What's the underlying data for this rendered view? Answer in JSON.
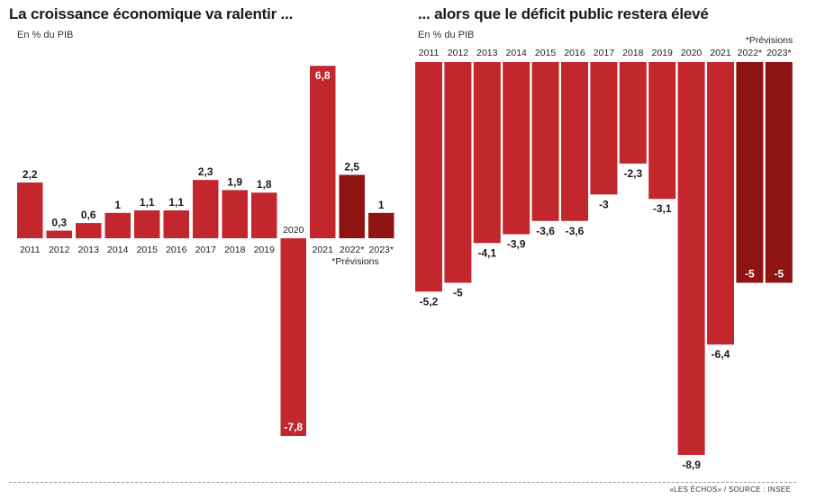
{
  "source": "«LES ÉCHOS» / SOURCE : INSEE",
  "charts": [
    {
      "title": "La croissance économique va ralentir ...",
      "subtitle": "En % du PIB",
      "note": "*Prévisions"
    },
    {
      "title": "... alors que le déficit public restera élevé",
      "subtitle": "En % du PIB",
      "note": "*Prévisions"
    }
  ],
  "colors": {
    "actual": "#c1272d",
    "forecast": "#8e1414",
    "text": "#1a1a1a",
    "label_on_bar": "#ffffff"
  },
  "chart_data": [
    {
      "type": "bar",
      "title": "La croissance économique va ralentir ...",
      "ylabel": "En % du PIB",
      "categories": [
        "2011",
        "2012",
        "2013",
        "2014",
        "2015",
        "2016",
        "2017",
        "2018",
        "2019",
        "2020",
        "2021",
        "2022*",
        "2023*"
      ],
      "values": [
        2.2,
        0.3,
        0.6,
        1,
        1.1,
        1.1,
        2.3,
        1.9,
        1.8,
        -7.8,
        6.8,
        2.5,
        1
      ],
      "value_labels": [
        "2,2",
        "0,3",
        "0,6",
        "1",
        "1,1",
        "1,1",
        "2,3",
        "1,9",
        "1,8",
        "-7,8",
        "6,8",
        "2,5",
        "1"
      ],
      "forecast": [
        false,
        false,
        false,
        false,
        false,
        false,
        false,
        false,
        false,
        false,
        false,
        true,
        true
      ],
      "ylim": [
        -7.8,
        6.8
      ]
    },
    {
      "type": "bar",
      "title": "... alors que le déficit public restera élevé",
      "ylabel": "En % du PIB",
      "categories": [
        "2011",
        "2012",
        "2013",
        "2014",
        "2015",
        "2016",
        "2017",
        "2018",
        "2019",
        "2020",
        "2021",
        "2022*",
        "2023*"
      ],
      "values": [
        -5.2,
        -5,
        -4.1,
        -3.9,
        -3.6,
        -3.6,
        -3,
        -2.3,
        -3.1,
        -8.9,
        -6.4,
        -5,
        -5
      ],
      "value_labels": [
        "-5,2",
        "-5",
        "-4,1",
        "-3,9",
        "-3,6",
        "-3,6",
        "-3",
        "-2,3",
        "-3,1",
        "-8,9",
        "-6,4",
        "-5",
        "-5"
      ],
      "forecast": [
        false,
        false,
        false,
        false,
        false,
        false,
        false,
        false,
        false,
        false,
        false,
        true,
        true
      ],
      "ylim": [
        -8.9,
        0
      ]
    }
  ]
}
